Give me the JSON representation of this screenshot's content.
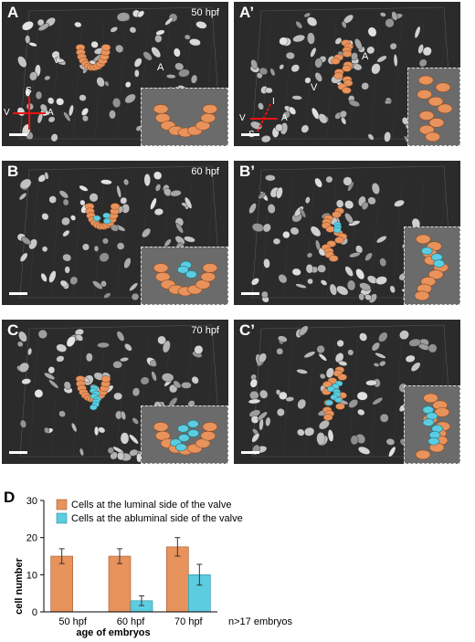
{
  "panels": [
    {
      "id": "A",
      "label": "A",
      "time": "50 hpf",
      "tags": [
        "V",
        "A"
      ],
      "blue_cells": 0
    },
    {
      "id": "A2",
      "label": "A’",
      "time": "",
      "tags": [
        "V",
        "A"
      ],
      "blue_cells": 0
    },
    {
      "id": "B",
      "label": "B",
      "time": "60 hpf",
      "tags": [],
      "blue_cells": 3
    },
    {
      "id": "B2",
      "label": "B’",
      "time": "",
      "tags": [],
      "blue_cells": 3
    },
    {
      "id": "C",
      "label": "C",
      "time": "70 hpf",
      "tags": [],
      "blue_cells": 10
    },
    {
      "id": "C2",
      "label": "C’",
      "time": "",
      "tags": [],
      "blue_cells": 10
    }
  ],
  "axes_A": {
    "up": "S",
    "left": "V",
    "right": "A"
  },
  "axes_A2": {
    "up": "I",
    "left": "V",
    "right": "A",
    "down": "S"
  },
  "colors": {
    "luminal": "#e8925c",
    "abluminal": "#5ccde0",
    "panel_bg": "#2b2b2b"
  },
  "chart_data": {
    "type": "bar",
    "panel_label": "D",
    "categories": [
      "50 hpf",
      "60 hpf",
      "70 hpf"
    ],
    "series": [
      {
        "name": "Cells at the luminal side of the valve",
        "values": [
          15,
          15,
          17.5
        ],
        "errors": [
          2,
          2,
          2.5
        ]
      },
      {
        "name": "Cells at the abluminal side of the valve",
        "values": [
          0,
          3,
          10
        ],
        "errors": [
          0,
          1.3,
          2.8
        ]
      }
    ],
    "xlabel": "age of embryos",
    "ylabel": "cell number",
    "yticks": [
      0,
      10,
      20,
      30
    ],
    "ylim": [
      0,
      30
    ],
    "note": "n>17 embryos",
    "legend": "top"
  }
}
